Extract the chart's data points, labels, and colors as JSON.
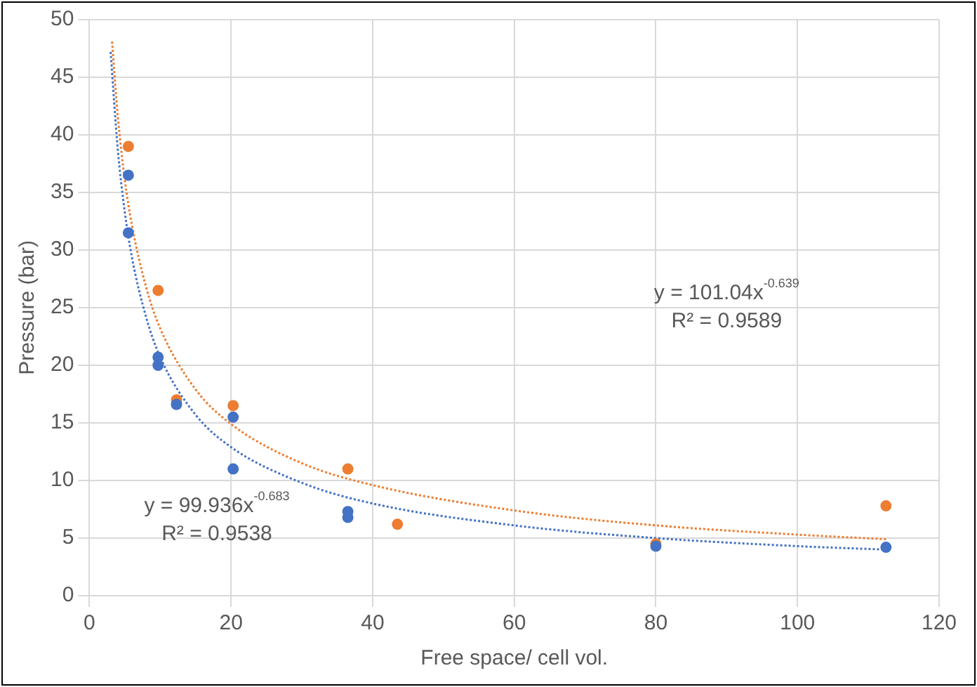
{
  "chart_data": {
    "type": "scatter",
    "xlabel": "Free space/ cell vol.",
    "ylabel": "Pressure (bar)",
    "xlim": [
      0,
      120
    ],
    "xticks": [
      0,
      20,
      40,
      60,
      80,
      100,
      120
    ],
    "ylim": [
      0,
      50
    ],
    "yticks": [
      0,
      5,
      10,
      15,
      20,
      25,
      30,
      35,
      40,
      45,
      50
    ],
    "grid": true,
    "legend": false,
    "marker": "circle",
    "series": [
      {
        "color": "#4472c4",
        "x": [
          5.5,
          5.5,
          9.7,
          9.7,
          12.3,
          20.3,
          20.3,
          36.5,
          36.5,
          80,
          112.5
        ],
        "values": [
          36.5,
          31.5,
          20.7,
          20,
          16.6,
          15.5,
          11,
          7.3,
          6.8,
          4.3,
          4.2
        ]
      },
      {
        "color": "#ed7d31",
        "x": [
          5.5,
          9.7,
          12.3,
          20.3,
          36.5,
          43.5,
          80,
          112.5
        ],
        "values": [
          39,
          26.5,
          17,
          16.5,
          11,
          6.2,
          4.5,
          7.8
        ]
      },
      {
        "type": "line",
        "line_style": "dotted",
        "marker": "none",
        "color": "#4472c4",
        "x": [
          3,
          4,
          5,
          6,
          8,
          10,
          15,
          20,
          30,
          40,
          60,
          80,
          100,
          112.5
        ],
        "values": [
          47.2,
          38.8,
          33.3,
          29.4,
          24.2,
          20.7,
          15.7,
          12.9,
          9.8,
          8.0,
          6.1,
          5.0,
          4.3,
          4.0
        ]
      },
      {
        "type": "line",
        "line_style": "dotted",
        "marker": "none",
        "color": "#ed7d31",
        "x": [
          3.2,
          4,
          5,
          6,
          8,
          10,
          15,
          20,
          30,
          40,
          60,
          80,
          100,
          112.5
        ],
        "values": [
          48.1,
          41.7,
          36.1,
          32.2,
          26.8,
          23.2,
          17.9,
          14.9,
          11.5,
          9.6,
          7.4,
          6.1,
          5.3,
          4.9
        ]
      }
    ],
    "annotations": [
      "y = 99.936x$^{-0.683}$\nR² = 0.9538",
      "y = 101.04x$^{-0.639}$\nR² = 0.9589"
    ]
  }
}
